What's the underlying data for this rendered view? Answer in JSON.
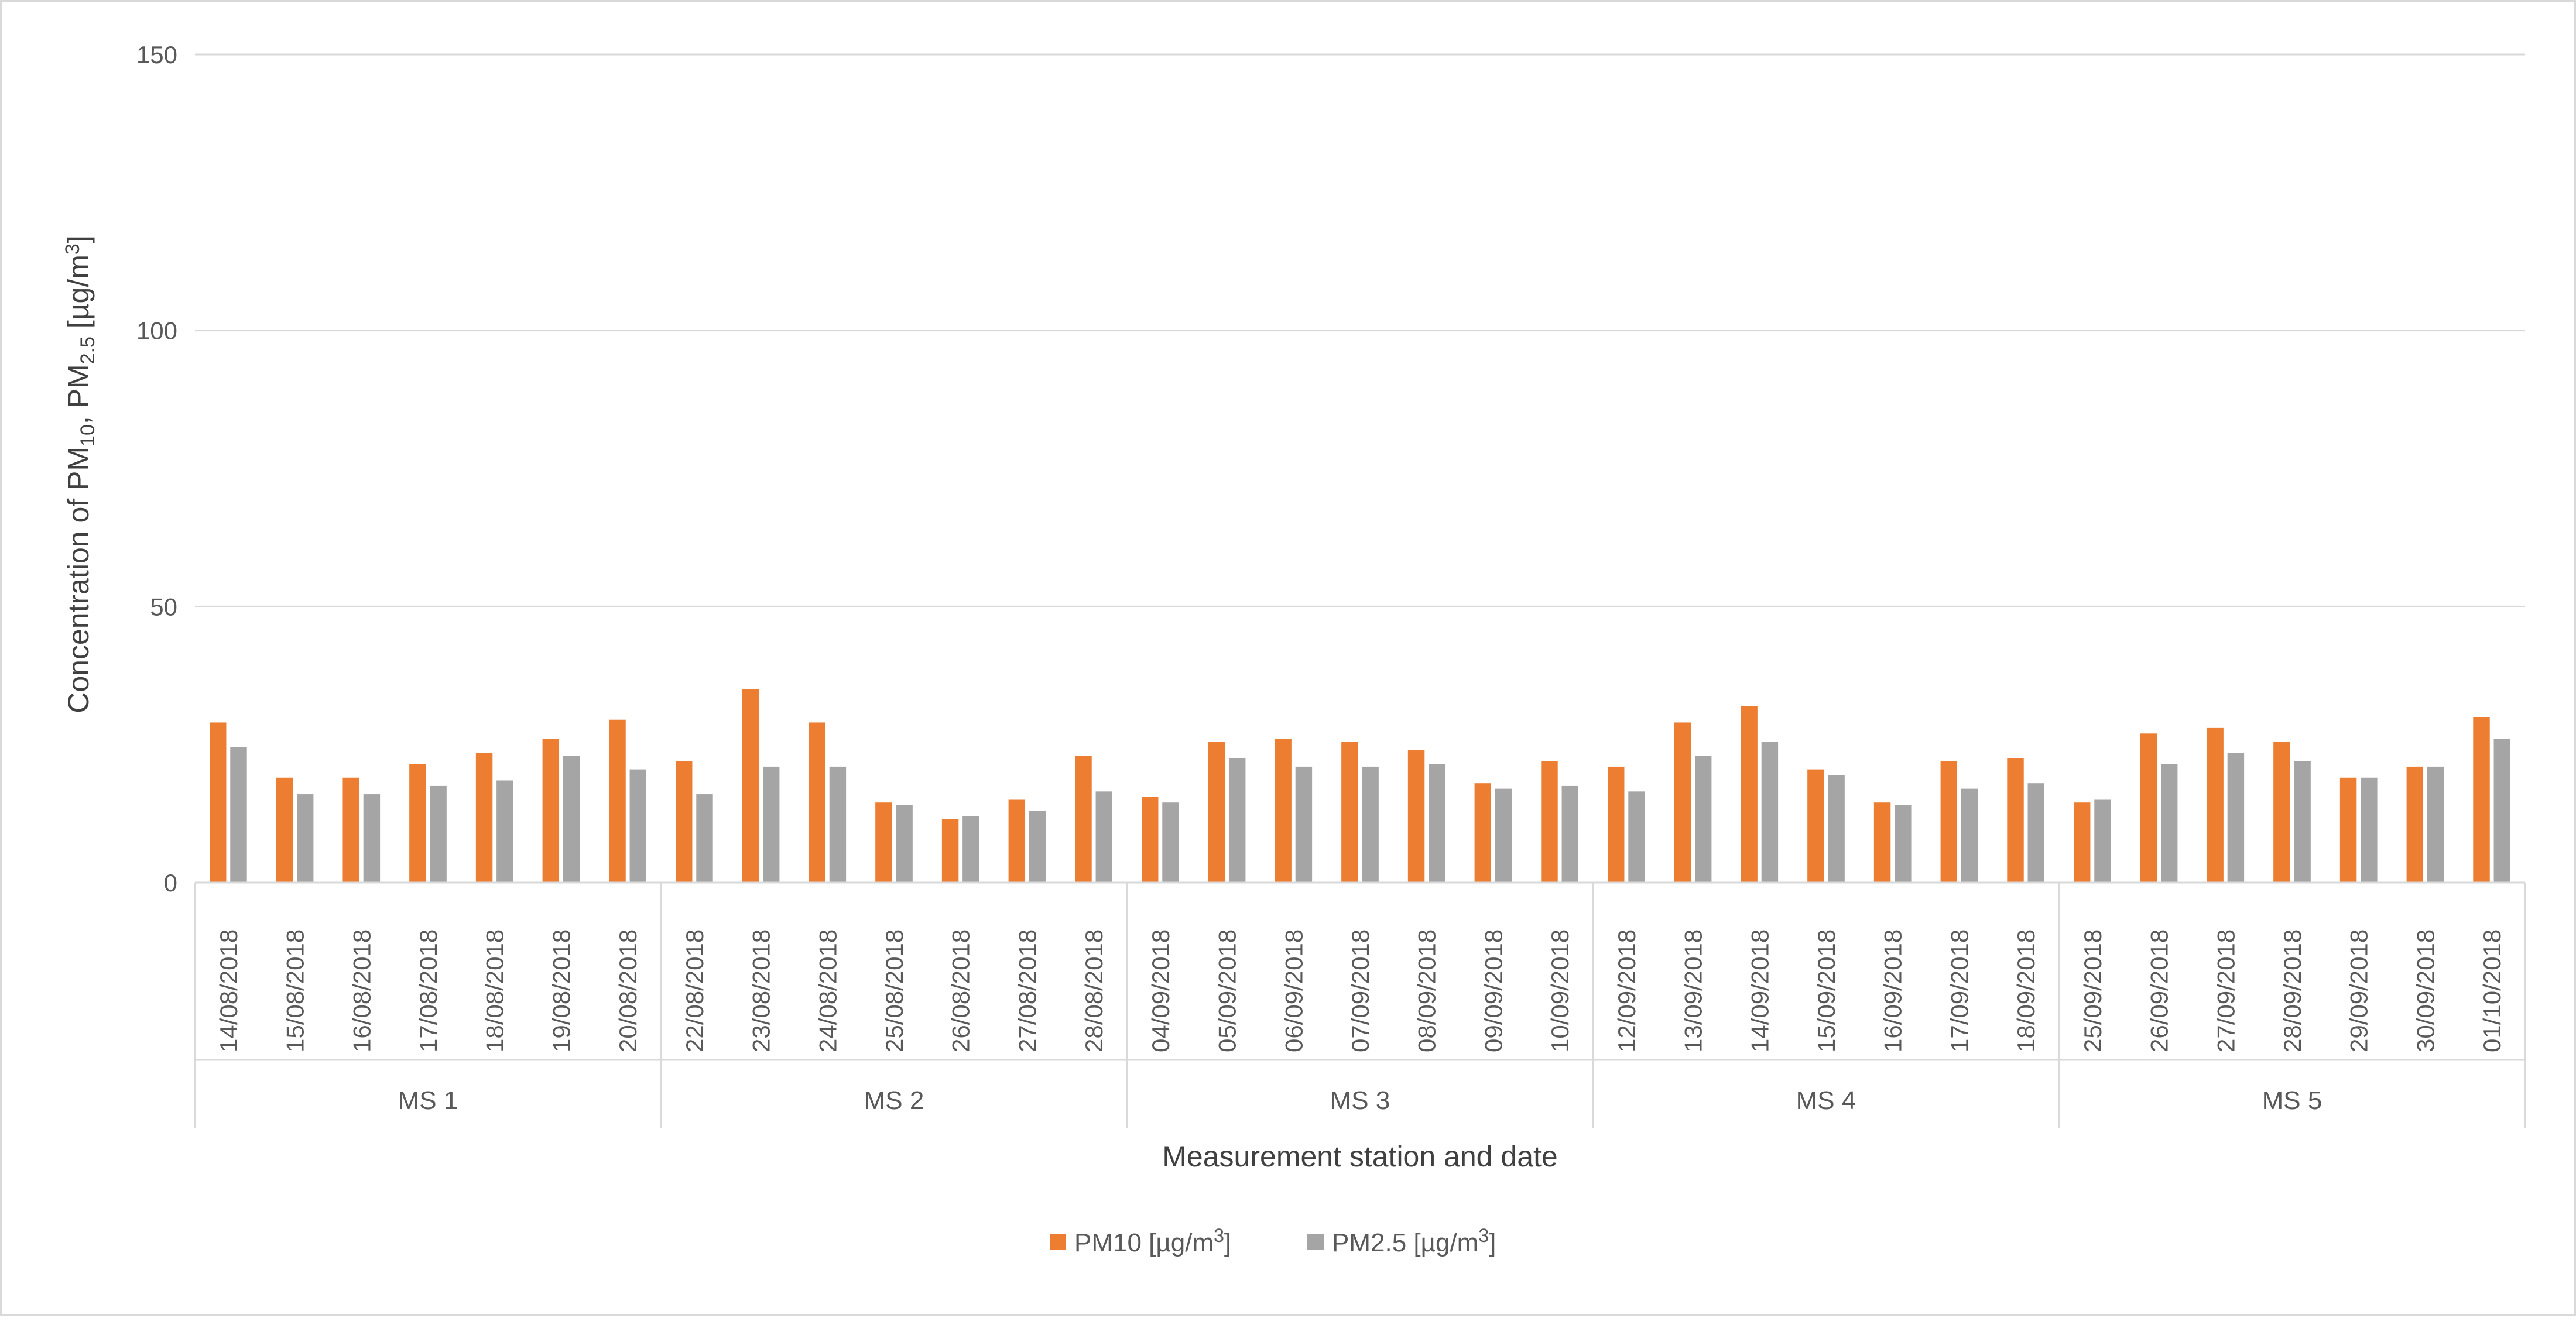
{
  "chart_data": {
    "type": "bar",
    "title": "",
    "xlabel": "Measurement station and date",
    "ylabel": {
      "prefix": "Concentration of PM",
      "sub1": "10",
      "middle": ", PM",
      "sub2": "2.5",
      "unit_prefix": " [µg/m",
      "sup": "3",
      "unit_suffix": "]"
    },
    "ylim": [
      0,
      150
    ],
    "yticks": [
      "0",
      "50",
      "100",
      "150"
    ],
    "grid": true,
    "legend_position": "bottom",
    "groups": [
      {
        "name": "MS 1",
        "categories": [
          "14/08/2018",
          "15/08/2018",
          "16/08/2018",
          "17/08/2018",
          "18/08/2018",
          "19/08/2018",
          "20/08/2018"
        ]
      },
      {
        "name": "MS 2",
        "categories": [
          "22/08/2018",
          "23/08/2018",
          "24/08/2018",
          "25/08/2018",
          "26/08/2018",
          "27/08/2018",
          "28/08/2018"
        ]
      },
      {
        "name": "MS 3",
        "categories": [
          "04/09/2018",
          "05/09/2018",
          "06/09/2018",
          "07/09/2018",
          "08/09/2018",
          "09/09/2018",
          "10/09/2018"
        ]
      },
      {
        "name": "MS 4",
        "categories": [
          "12/09/2018",
          "13/09/2018",
          "14/09/2018",
          "15/09/2018",
          "16/09/2018",
          "17/09/2018",
          "18/09/2018"
        ]
      },
      {
        "name": "MS 5",
        "categories": [
          "25/09/2018",
          "26/09/2018",
          "27/09/2018",
          "28/09/2018",
          "29/09/2018",
          "30/09/2018",
          "01/10/2018"
        ]
      }
    ],
    "series": [
      {
        "name": "PM10 [µg/m3]",
        "legend_base": "PM10 [µg/m",
        "legend_sup": "3",
        "legend_suffix": "]",
        "color": "#ED7D31",
        "values": [
          29,
          19,
          19,
          21.5,
          23.5,
          26,
          29.5,
          22,
          35,
          29,
          14.5,
          11.5,
          15,
          23,
          15.5,
          25.5,
          26,
          25.5,
          24,
          18,
          22,
          21,
          29,
          32,
          20.5,
          14.5,
          22,
          22.5,
          14.5,
          27,
          28,
          25.5,
          19,
          21,
          30
        ]
      },
      {
        "name": "PM2.5 [µg/m3]",
        "legend_base": "PM2.5 [µg/m",
        "legend_sup": "3",
        "legend_suffix": "]",
        "color": "#A5A5A5",
        "values": [
          24.5,
          16,
          16,
          17.5,
          18.5,
          23,
          20.5,
          16,
          21,
          21,
          14,
          12,
          13,
          16.5,
          14.5,
          22.5,
          21,
          21,
          21.5,
          17,
          17.5,
          16.5,
          23,
          25.5,
          19.5,
          14,
          17,
          18,
          15,
          21.5,
          23.5,
          22,
          19,
          21,
          26
        ]
      }
    ]
  }
}
